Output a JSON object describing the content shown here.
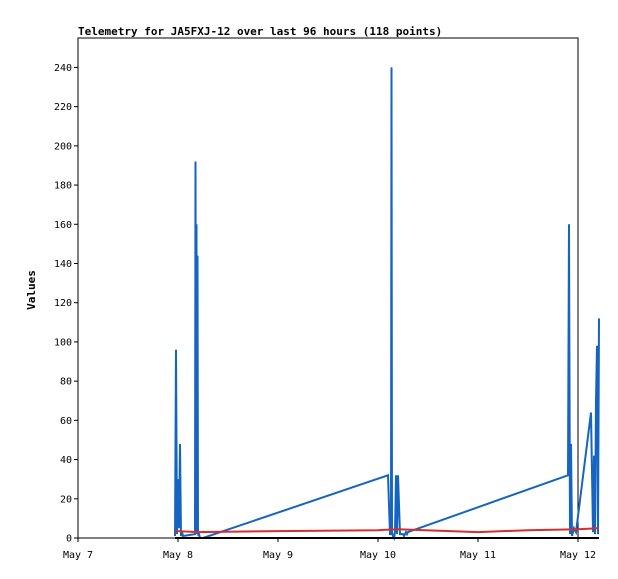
{
  "chart_data": {
    "type": "line",
    "title": "Telemetry for JA5FXJ-12 over last 96 hours (118 points)",
    "xlabel": "",
    "ylabel": "Values",
    "x_ticks": [
      "May 7",
      "May 8",
      "May 9",
      "May 10",
      "May 11",
      "May 12"
    ],
    "xlim": [
      "May 7",
      "May 12"
    ],
    "y_ticks": [
      0,
      20,
      40,
      60,
      80,
      100,
      120,
      140,
      160,
      180,
      200,
      220,
      240
    ],
    "ylim": [
      0,
      255
    ],
    "grid": false,
    "legend": false,
    "series": [
      {
        "color": "#1565c0",
        "x": [
          0.97,
          0.98,
          0.99,
          1.0,
          1.01,
          1.02,
          1.03,
          1.04,
          1.05,
          1.17,
          1.175,
          1.18,
          1.185,
          1.19,
          1.195,
          1.2,
          1.205,
          1.21,
          1.215,
          1.22,
          1.25,
          3.1,
          3.12,
          3.13,
          3.135,
          3.14,
          3.15,
          3.16,
          3.17,
          3.18,
          3.19,
          3.2,
          3.22,
          3.25,
          3.26,
          3.27,
          3.28,
          3.29,
          3.3,
          4.9,
          4.91,
          4.92,
          4.93,
          4.94,
          4.96,
          4.98,
          5.13,
          5.15,
          5.16,
          5.17,
          5.18,
          5.19,
          5.2,
          5.21
        ],
        "y": [
          1,
          96,
          2,
          30,
          5,
          48,
          1,
          3,
          1,
          2,
          192,
          3,
          160,
          2,
          144,
          3,
          1,
          2,
          1,
          0,
          0,
          32,
          2,
          2,
          240,
          3,
          1,
          0,
          3,
          32,
          2,
          32,
          2,
          2,
          1,
          2,
          3,
          2,
          3,
          32,
          160,
          2,
          48,
          1,
          5,
          3,
          64,
          3,
          42,
          2,
          70,
          98,
          2,
          112
        ]
      },
      {
        "color": "#d32f2f",
        "x": [
          0.97,
          1.0,
          1.2,
          2.0,
          3.0,
          3.2,
          4.0,
          4.5,
          5.0,
          5.2
        ],
        "y": [
          3,
          3.5,
          3,
          3.5,
          4,
          4.5,
          3,
          4,
          4.5,
          5
        ]
      },
      {
        "color": "#000000",
        "x": [
          0.97,
          5.21
        ],
        "y": [
          0,
          0
        ]
      }
    ]
  }
}
